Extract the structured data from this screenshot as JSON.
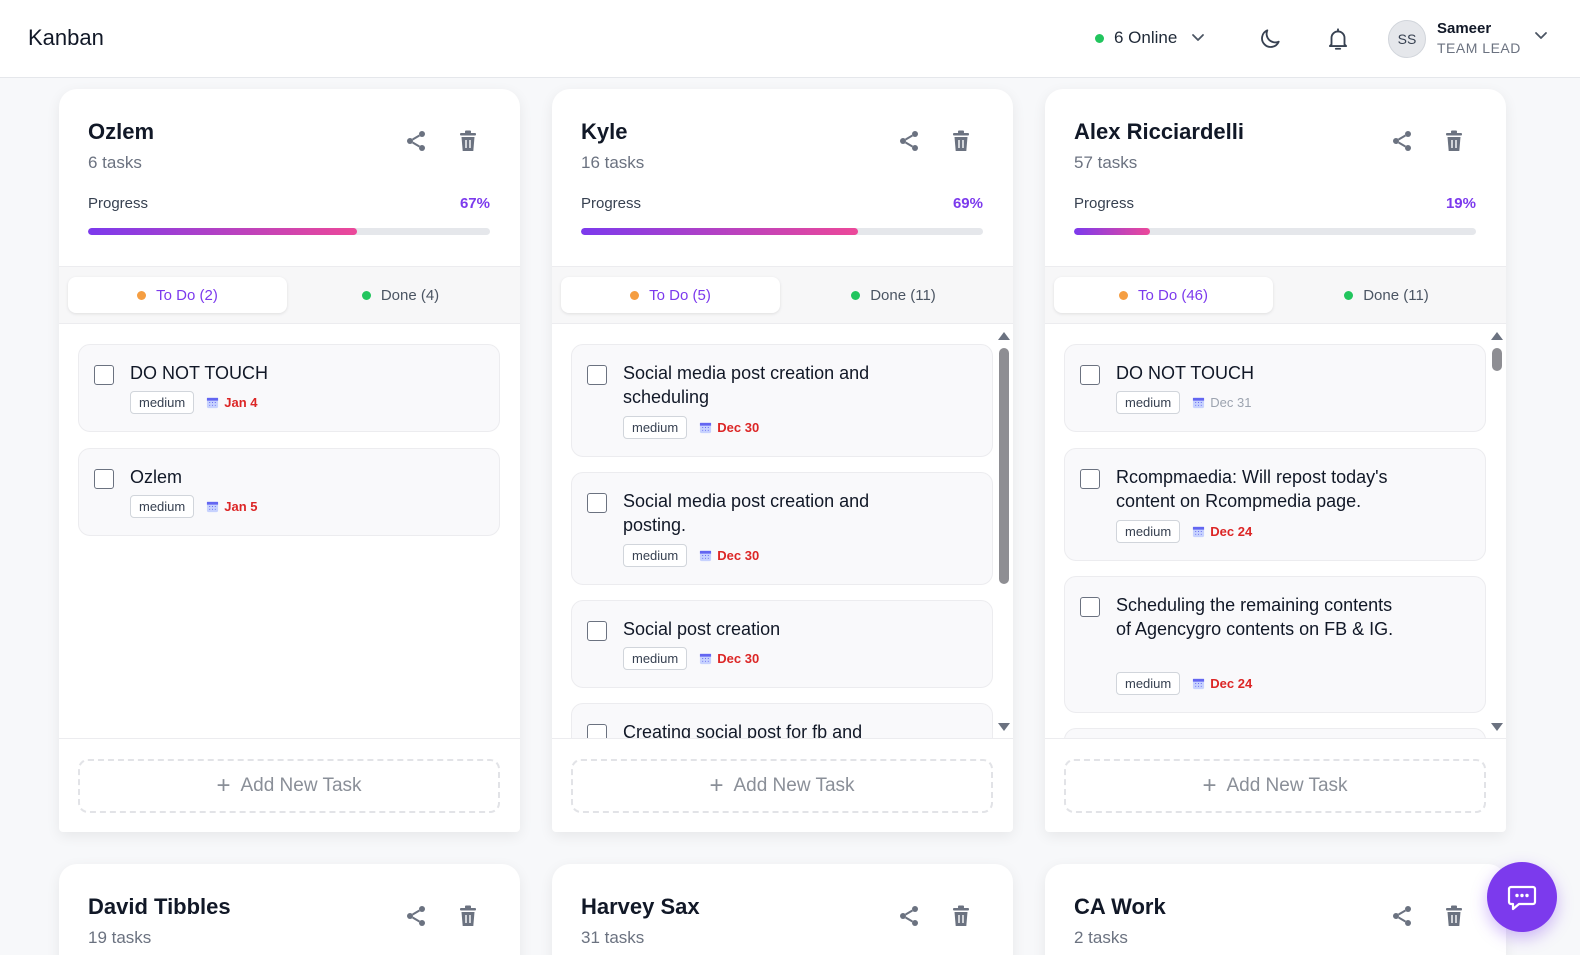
{
  "header": {
    "app_title": "Kanban",
    "online_label": "6 Online",
    "avatar_initials": "SS",
    "user_name": "Sameer",
    "user_role": "TEAM LEAD"
  },
  "boards": [
    {
      "title": "Ozlem",
      "count": "6 tasks",
      "progress_label": "Progress",
      "progress_text": "67%",
      "progress": 0.67,
      "tab_todo": "To Do (2)",
      "tab_done": "Done (4)",
      "add_task": "Add New Task",
      "tasks": [
        {
          "title": "DO NOT TOUCH",
          "priority": "medium",
          "due": "Jan 4",
          "due_overdue": true
        },
        {
          "title": "Ozlem",
          "priority": "medium",
          "due": "Jan 5",
          "due_overdue": true
        }
      ]
    },
    {
      "title": "Kyle",
      "count": "16 tasks",
      "progress_label": "Progress",
      "progress_text": "69%",
      "progress": 0.69,
      "tab_todo": "To Do (5)",
      "tab_done": "Done (11)",
      "add_task": "Add New Task",
      "tasks": [
        {
          "title": "Social media post creation and scheduling",
          "priority": "medium",
          "due": "Dec 30",
          "due_overdue": true
        },
        {
          "title": "Social media post creation and posting.",
          "priority": "medium",
          "due": "Dec 30",
          "due_overdue": true
        },
        {
          "title": "Social post creation",
          "priority": "medium",
          "due": "Dec 30",
          "due_overdue": true
        },
        {
          "title": "Creating social post for fb and",
          "priority": "",
          "due": "",
          "due_overdue": true
        }
      ]
    },
    {
      "title": "Alex Ricciardelli",
      "count": "57 tasks",
      "progress_label": "Progress",
      "progress_text": "19%",
      "progress": 0.19,
      "tab_todo": "To Do (46)",
      "tab_done": "Done (11)",
      "add_task": "Add New Task",
      "tasks": [
        {
          "title": "DO NOT TOUCH",
          "priority": "medium",
          "due": "Dec 31",
          "due_overdue": false
        },
        {
          "title": "Rcompmaedia: Will repost today's content on Rcompmedia page.",
          "priority": "medium",
          "due": "Dec 24",
          "due_overdue": true
        },
        {
          "title": "Scheduling the remaining contents of Agencygro contents on FB & IG.",
          "priority": "medium",
          "due": "Dec 24",
          "due_overdue": true
        }
      ]
    },
    {
      "title": "David Tibbles",
      "count": "19 tasks"
    },
    {
      "title": "Harvey Sax",
      "count": "31 tasks"
    },
    {
      "title": "CA Work",
      "count": "2 tasks"
    }
  ],
  "colors": {
    "accent": "#7c3aed",
    "progress_end": "#ec4899",
    "todo_dot": "#f59e42",
    "done_dot": "#22c55e",
    "online_dot": "#22c55e",
    "overdue": "#dc2626"
  },
  "icons": [
    "moon-icon",
    "bell-icon",
    "share-icon",
    "trash-icon",
    "calendar-icon",
    "chat-icon",
    "chevron-down-icon",
    "plus-icon"
  ]
}
